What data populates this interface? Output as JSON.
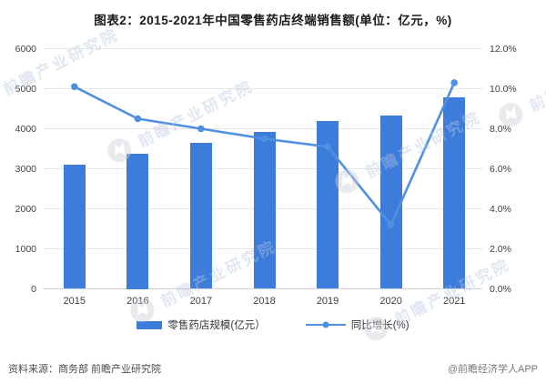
{
  "title": "图表2：2015-2021年中国零售药店终端销售额(单位：亿元，%)",
  "chart_data": {
    "type": "bar",
    "subtype": "bar+line dual-axis combo",
    "categories": [
      "2015",
      "2016",
      "2017",
      "2018",
      "2019",
      "2020",
      "2021"
    ],
    "series": [
      {
        "name": "零售药店规模(亿元）",
        "type": "bar",
        "axis": "left",
        "values": [
          3096,
          3375,
          3640,
          3919,
          4196,
          4330,
          4774
        ]
      },
      {
        "name": "同比增长(%)",
        "type": "line",
        "axis": "right",
        "values": [
          10.1,
          8.5,
          8.0,
          7.5,
          7.1,
          3.2,
          10.3
        ]
      }
    ],
    "left_axis": {
      "min": 0,
      "max": 6000,
      "step": 1000,
      "tick_labels": [
        "0",
        "1000",
        "2000",
        "3000",
        "4000",
        "5000",
        "6000"
      ]
    },
    "right_axis": {
      "min": 0,
      "max": 12,
      "step": 2,
      "tick_labels": [
        "0.0%",
        "2.0%",
        "4.0%",
        "6.0%",
        "8.0%",
        "10.0%",
        "12.0%"
      ]
    },
    "grid": "horizontal gridlines on",
    "legend_position": "bottom"
  },
  "watermark": {
    "text": "前瞻产业研究院"
  },
  "footer": {
    "source": "资料来源：商务部 前瞻产业研究院",
    "attribution": "@前瞻经济学人APP"
  },
  "colors": {
    "bar": "#3d7cdb",
    "line": "#4f90e2",
    "gridline": "#e7e7e7",
    "axis_text": "#404040",
    "watermark_text": "#b7c7e0",
    "watermark_logo": "#c9ced6"
  }
}
